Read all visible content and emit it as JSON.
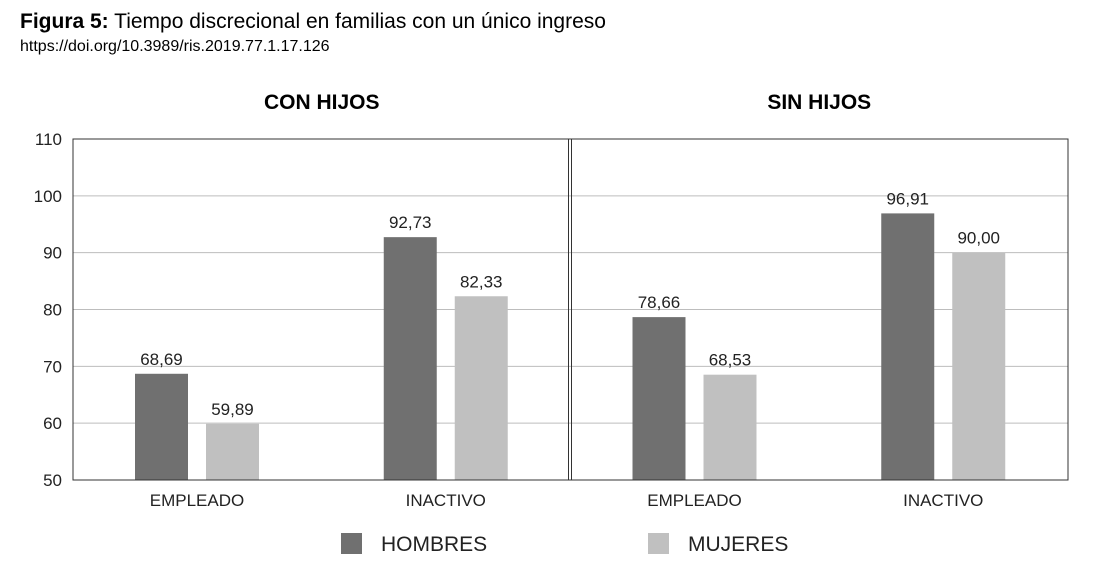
{
  "figure": {
    "label": "Figura 5:",
    "title": "Tiempo discrecional en familias con un único ingreso",
    "doi": "https://doi.org/10.3989/ris.2019.77.1.17.126"
  },
  "colors": {
    "hombres": "#707070",
    "mujeres": "#c0c0c0",
    "grid": "#bdbdbd",
    "axis": "#333333"
  },
  "chart_data": {
    "type": "bar",
    "ylim": [
      50,
      110
    ],
    "yticks": [
      50,
      60,
      70,
      80,
      90,
      100,
      110
    ],
    "grid": true,
    "legend_position": "bottom",
    "series_names": [
      "HOMBRES",
      "MUJERES"
    ],
    "panels": [
      {
        "title": "CON HIJOS",
        "categories": [
          "EMPLEADO",
          "INACTIVO"
        ],
        "series": [
          {
            "name": "HOMBRES",
            "values": [
              68.69,
              92.73
            ],
            "labels": [
              "68,69",
              "92,73"
            ]
          },
          {
            "name": "MUJERES",
            "values": [
              59.89,
              82.33
            ],
            "labels": [
              "59,89",
              "82,33"
            ]
          }
        ]
      },
      {
        "title": "SIN HIJOS",
        "categories": [
          "EMPLEADO",
          "INACTIVO"
        ],
        "series": [
          {
            "name": "HOMBRES",
            "values": [
              78.66,
              96.91
            ],
            "labels": [
              "78,66",
              "96,91"
            ]
          },
          {
            "name": "MUJERES",
            "values": [
              68.53,
              90.0
            ],
            "labels": [
              "68,53",
              "90,00"
            ]
          }
        ]
      }
    ]
  }
}
